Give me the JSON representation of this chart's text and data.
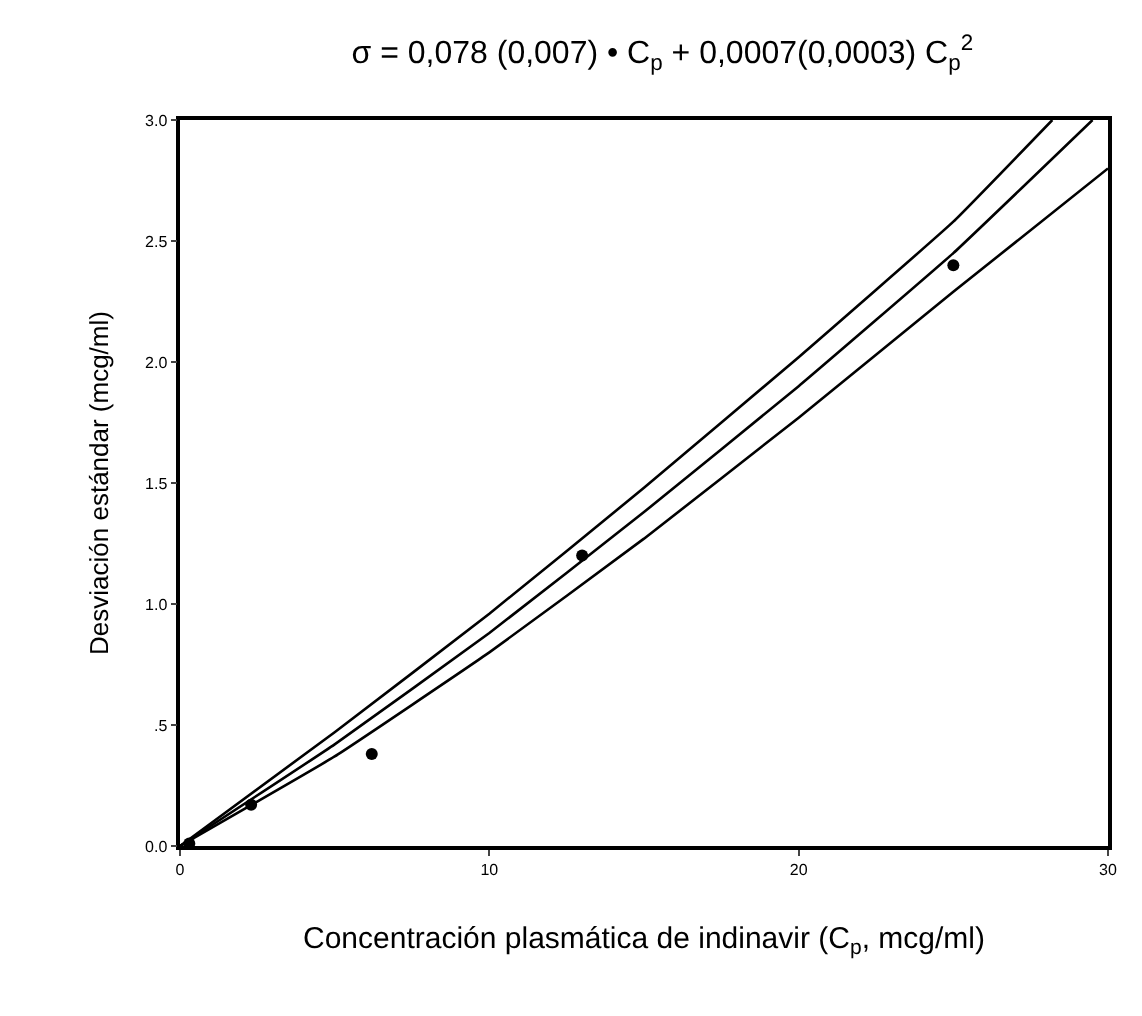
{
  "chart_data": {
    "type": "scatter",
    "title": "σ = 0,078 (0,007) • C$_{p}$ + 0,0007(0,0003) C$_{p}$$^{2}$",
    "xlabel": "Concentración plasmática de indinavir (C$_{p}$, mcg/ml)",
    "ylabel": "Desviación estándar (mcg/ml)",
    "series": [
      {
        "type": "line",
        "color": "#000000",
        "marker": "none",
        "x": [
          0,
          5,
          10,
          15,
          20,
          25,
          28.2
        ],
        "values": [
          0,
          0.47,
          0.96,
          1.48,
          2.02,
          2.58,
          3.0
        ]
      },
      {
        "type": "line",
        "color": "#000000",
        "marker": "none",
        "x": [
          0,
          5,
          10,
          15,
          20,
          25,
          29.5
        ],
        "values": [
          0,
          0.42,
          0.88,
          1.38,
          1.9,
          2.45,
          3.0
        ]
      },
      {
        "type": "line",
        "color": "#000000",
        "marker": "none",
        "x": [
          0,
          5,
          10,
          15,
          20,
          25,
          30
        ],
        "values": [
          0,
          0.37,
          0.8,
          1.27,
          1.77,
          2.29,
          2.8
        ]
      },
      {
        "color": "#000000",
        "marker": "circle",
        "x": [
          0.3,
          2.3,
          6.2,
          13,
          25
        ],
        "values": [
          0.01,
          0.17,
          0.38,
          1.2,
          2.4
        ]
      }
    ],
    "xlim": [
      0,
      30
    ],
    "xticks": [
      0,
      10,
      20,
      30
    ],
    "ylim": [
      0,
      3.0
    ],
    "yticks": [
      {
        "value": 0,
        "label": "0.0"
      },
      {
        "value": 0.5,
        "label": ".5"
      },
      {
        "value": 1.0,
        "label": "1.0"
      },
      {
        "value": 1.5,
        "label": "1.5"
      },
      {
        "value": 2.0,
        "label": "2.0"
      },
      {
        "value": 2.5,
        "label": "2.5"
      },
      {
        "value": 3.0,
        "label": "3.0"
      }
    ]
  }
}
